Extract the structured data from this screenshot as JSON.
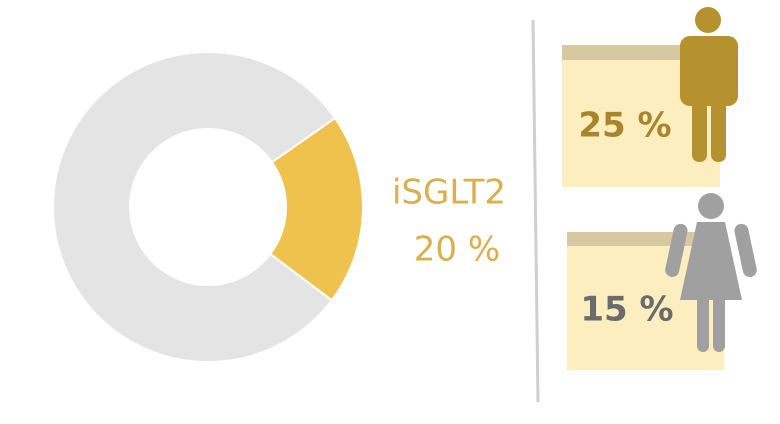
{
  "chart_data": {
    "type": "pie",
    "donut": true,
    "categories": [
      "iSGLT2",
      null
    ],
    "values": [
      20,
      80
    ],
    "value_labels": [
      "20 %",
      null
    ],
    "colors": [
      "#efc24d",
      "#e4e4e4"
    ]
  },
  "stats": [
    "25 %",
    "15 %"
  ]
}
